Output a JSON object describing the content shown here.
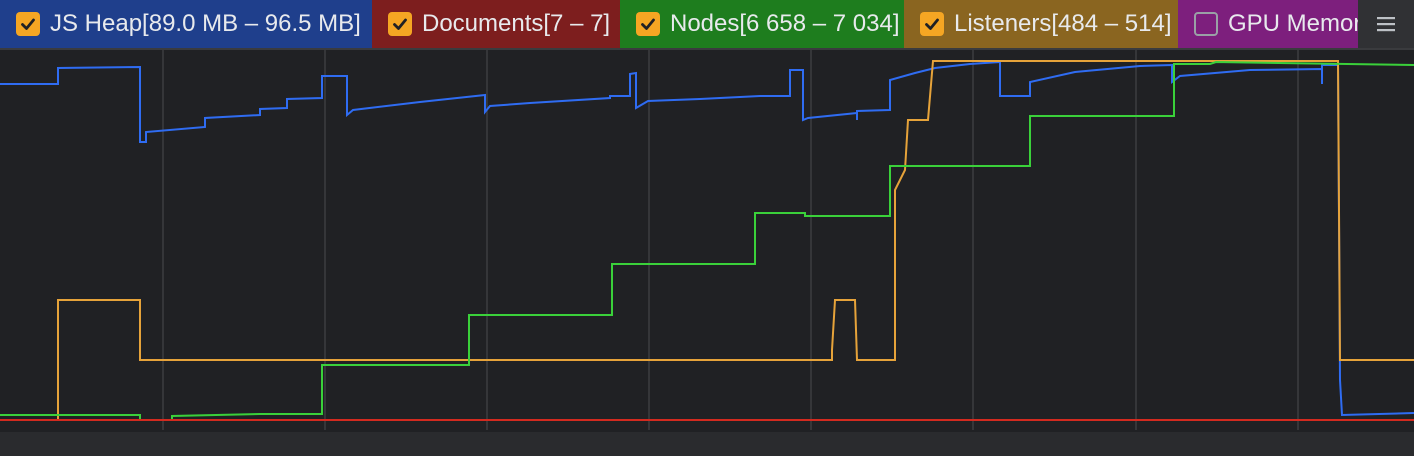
{
  "toolbar": {
    "counters": [
      {
        "name": "js-heap",
        "label": "JS Heap[89.0 MB – 96.5 MB]",
        "checked": true,
        "bg": "#1f3f8c",
        "line": "#2f6cf2"
      },
      {
        "name": "documents",
        "label": "Documents[7 – 7]",
        "checked": true,
        "bg": "#7d1e1e",
        "line": "#d32a1f"
      },
      {
        "name": "nodes",
        "label": "Nodes[6 658 – 7 034]",
        "checked": true,
        "bg": "#1e7d1e",
        "line": "#3ad13a"
      },
      {
        "name": "listeners",
        "label": "Listeners[484 – 514]",
        "checked": true,
        "bg": "#8a6520",
        "line": "#e6a33a"
      },
      {
        "name": "gpu-memory",
        "label": "GPU Memor",
        "checked": false,
        "bg": "#7d1f7d",
        "line": "#c040c0"
      }
    ],
    "menu_icon": "hamburger-menu-icon"
  },
  "colors": {
    "background": "#202124",
    "gridline": "#3c3d40",
    "checkbox_checked": "#f5a623"
  }
}
